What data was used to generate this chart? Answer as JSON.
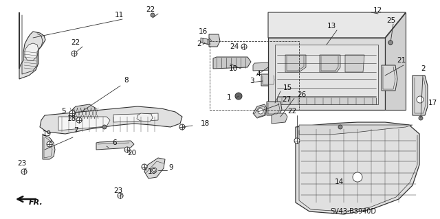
{
  "diagram_code": "SV43-B3940D",
  "background_color": "#ffffff",
  "line_color": "#333333",
  "text_color": "#111111",
  "fill_color": "#e8e8e8",
  "fill_dark": "#cccccc",
  "fig_width": 6.4,
  "fig_height": 3.19,
  "dpi": 100
}
